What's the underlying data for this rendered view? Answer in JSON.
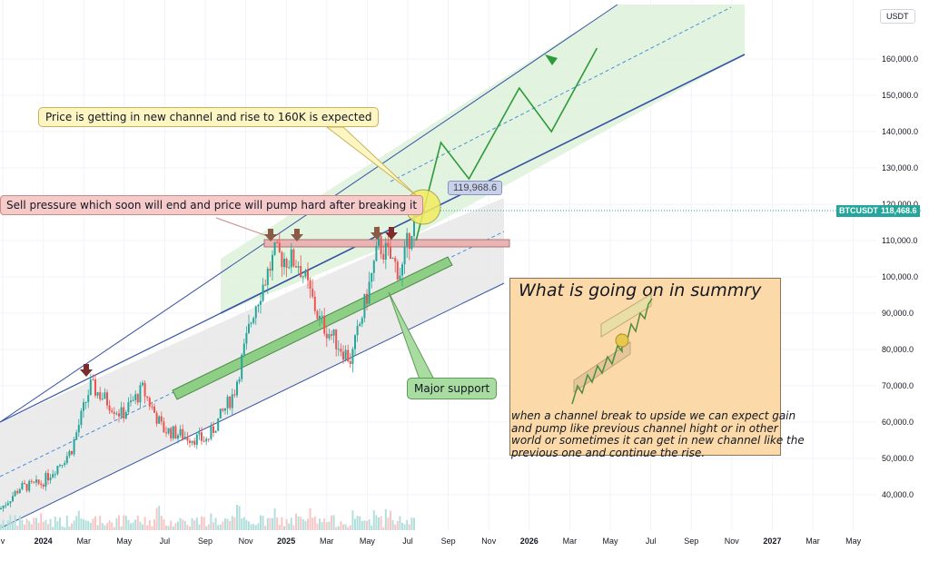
{
  "axis_unit": "USDT",
  "symbol": "BTCUSDT",
  "last_price": "118,468.6",
  "target_label": "119,968.6",
  "y_ticks": [
    "160,000.0",
    "150,000.0",
    "140,000.0",
    "130,000.0",
    "120,000.0",
    "110,000.0",
    "100,000.0",
    "90,000.0",
    "80,000.0",
    "70,000.0",
    "60,000.0",
    "50,000.0",
    "40,000.0"
  ],
  "x_ticks": [
    {
      "label": "v",
      "year": false
    },
    {
      "label": "2024",
      "year": true
    },
    {
      "label": "Mar",
      "year": false
    },
    {
      "label": "May",
      "year": false
    },
    {
      "label": "Jul",
      "year": false
    },
    {
      "label": "Sep",
      "year": false
    },
    {
      "label": "Nov",
      "year": false
    },
    {
      "label": "2025",
      "year": true
    },
    {
      "label": "Mar",
      "year": false
    },
    {
      "label": "May",
      "year": false
    },
    {
      "label": "Jul",
      "year": false
    },
    {
      "label": "Sep",
      "year": false
    },
    {
      "label": "Nov",
      "year": false
    },
    {
      "label": "2026",
      "year": true
    },
    {
      "label": "Mar",
      "year": false
    },
    {
      "label": "May",
      "year": false
    },
    {
      "label": "Jul",
      "year": false
    },
    {
      "label": "Sep",
      "year": false
    },
    {
      "label": "Nov",
      "year": false
    },
    {
      "label": "2027",
      "year": true
    },
    {
      "label": "Mar",
      "year": false
    },
    {
      "label": "May",
      "year": false
    }
  ],
  "annotations": {
    "expected": "Price is getting in new channel and rise to 160K is expected",
    "sell_pressure": "Sell pressure which soon will end and price will pump hard after breaking it",
    "major_support": "Major support",
    "summary_title": "What is going on in summry",
    "summary_text": "when a channel break to upside we can expect gain and pump like previous channel hight or in other world or sometimes it can get in new channel like the previous one and continue the rise."
  },
  "colors": {
    "up": "#26a69a",
    "down": "#ef5350",
    "channel_line": "#3654a3",
    "new_channel_fill": "#dff2dc",
    "old_channel_fill": "#e8e8e8",
    "projection": "#2e9a3a",
    "price_badge": "#26a69a",
    "summary_fill": "#fcd9a8",
    "resistance_fill": "#e8b4b4",
    "arrow": "#7d2b2b"
  },
  "chart_data": {
    "type": "candlestick",
    "x_range": [
      "2023-11-01",
      "2027-06-01"
    ],
    "ylim": [
      30000,
      168000
    ],
    "price_path": [
      [
        "2023-11-01",
        36000
      ],
      [
        "2023-12-01",
        42000
      ],
      [
        "2024-01-01",
        43000
      ],
      [
        "2024-02-15",
        52000
      ],
      [
        "2024-03-15",
        70000
      ],
      [
        "2024-05-01",
        62000
      ],
      [
        "2024-06-01",
        69000
      ],
      [
        "2024-07-01",
        58000
      ],
      [
        "2024-08-05",
        56000
      ],
      [
        "2024-09-05",
        55000
      ],
      [
        "2024-10-15",
        68000
      ],
      [
        "2024-11-15",
        92000
      ],
      [
        "2024-12-15",
        106000
      ],
      [
        "2025-01-20",
        104000
      ],
      [
        "2025-02-20",
        88000
      ],
      [
        "2025-04-08",
        77000
      ],
      [
        "2025-05-20",
        109000
      ],
      [
        "2025-06-22",
        101000
      ],
      [
        "2025-07-14",
        120000
      ]
    ],
    "new_channel_projection": [
      [
        "2025-07-14",
        110000
      ],
      [
        "2025-08-20",
        137000
      ],
      [
        "2025-10-01",
        127000
      ],
      [
        "2025-12-15",
        152000
      ],
      [
        "2026-02-01",
        140000
      ],
      [
        "2026-04-10",
        163000
      ]
    ],
    "resistance_zone": {
      "from": "2024-11-20",
      "to": "2025-09-25",
      "low": 108000,
      "high": 110000
    },
    "last_price": 118468.6,
    "target_price": 119968.6
  }
}
